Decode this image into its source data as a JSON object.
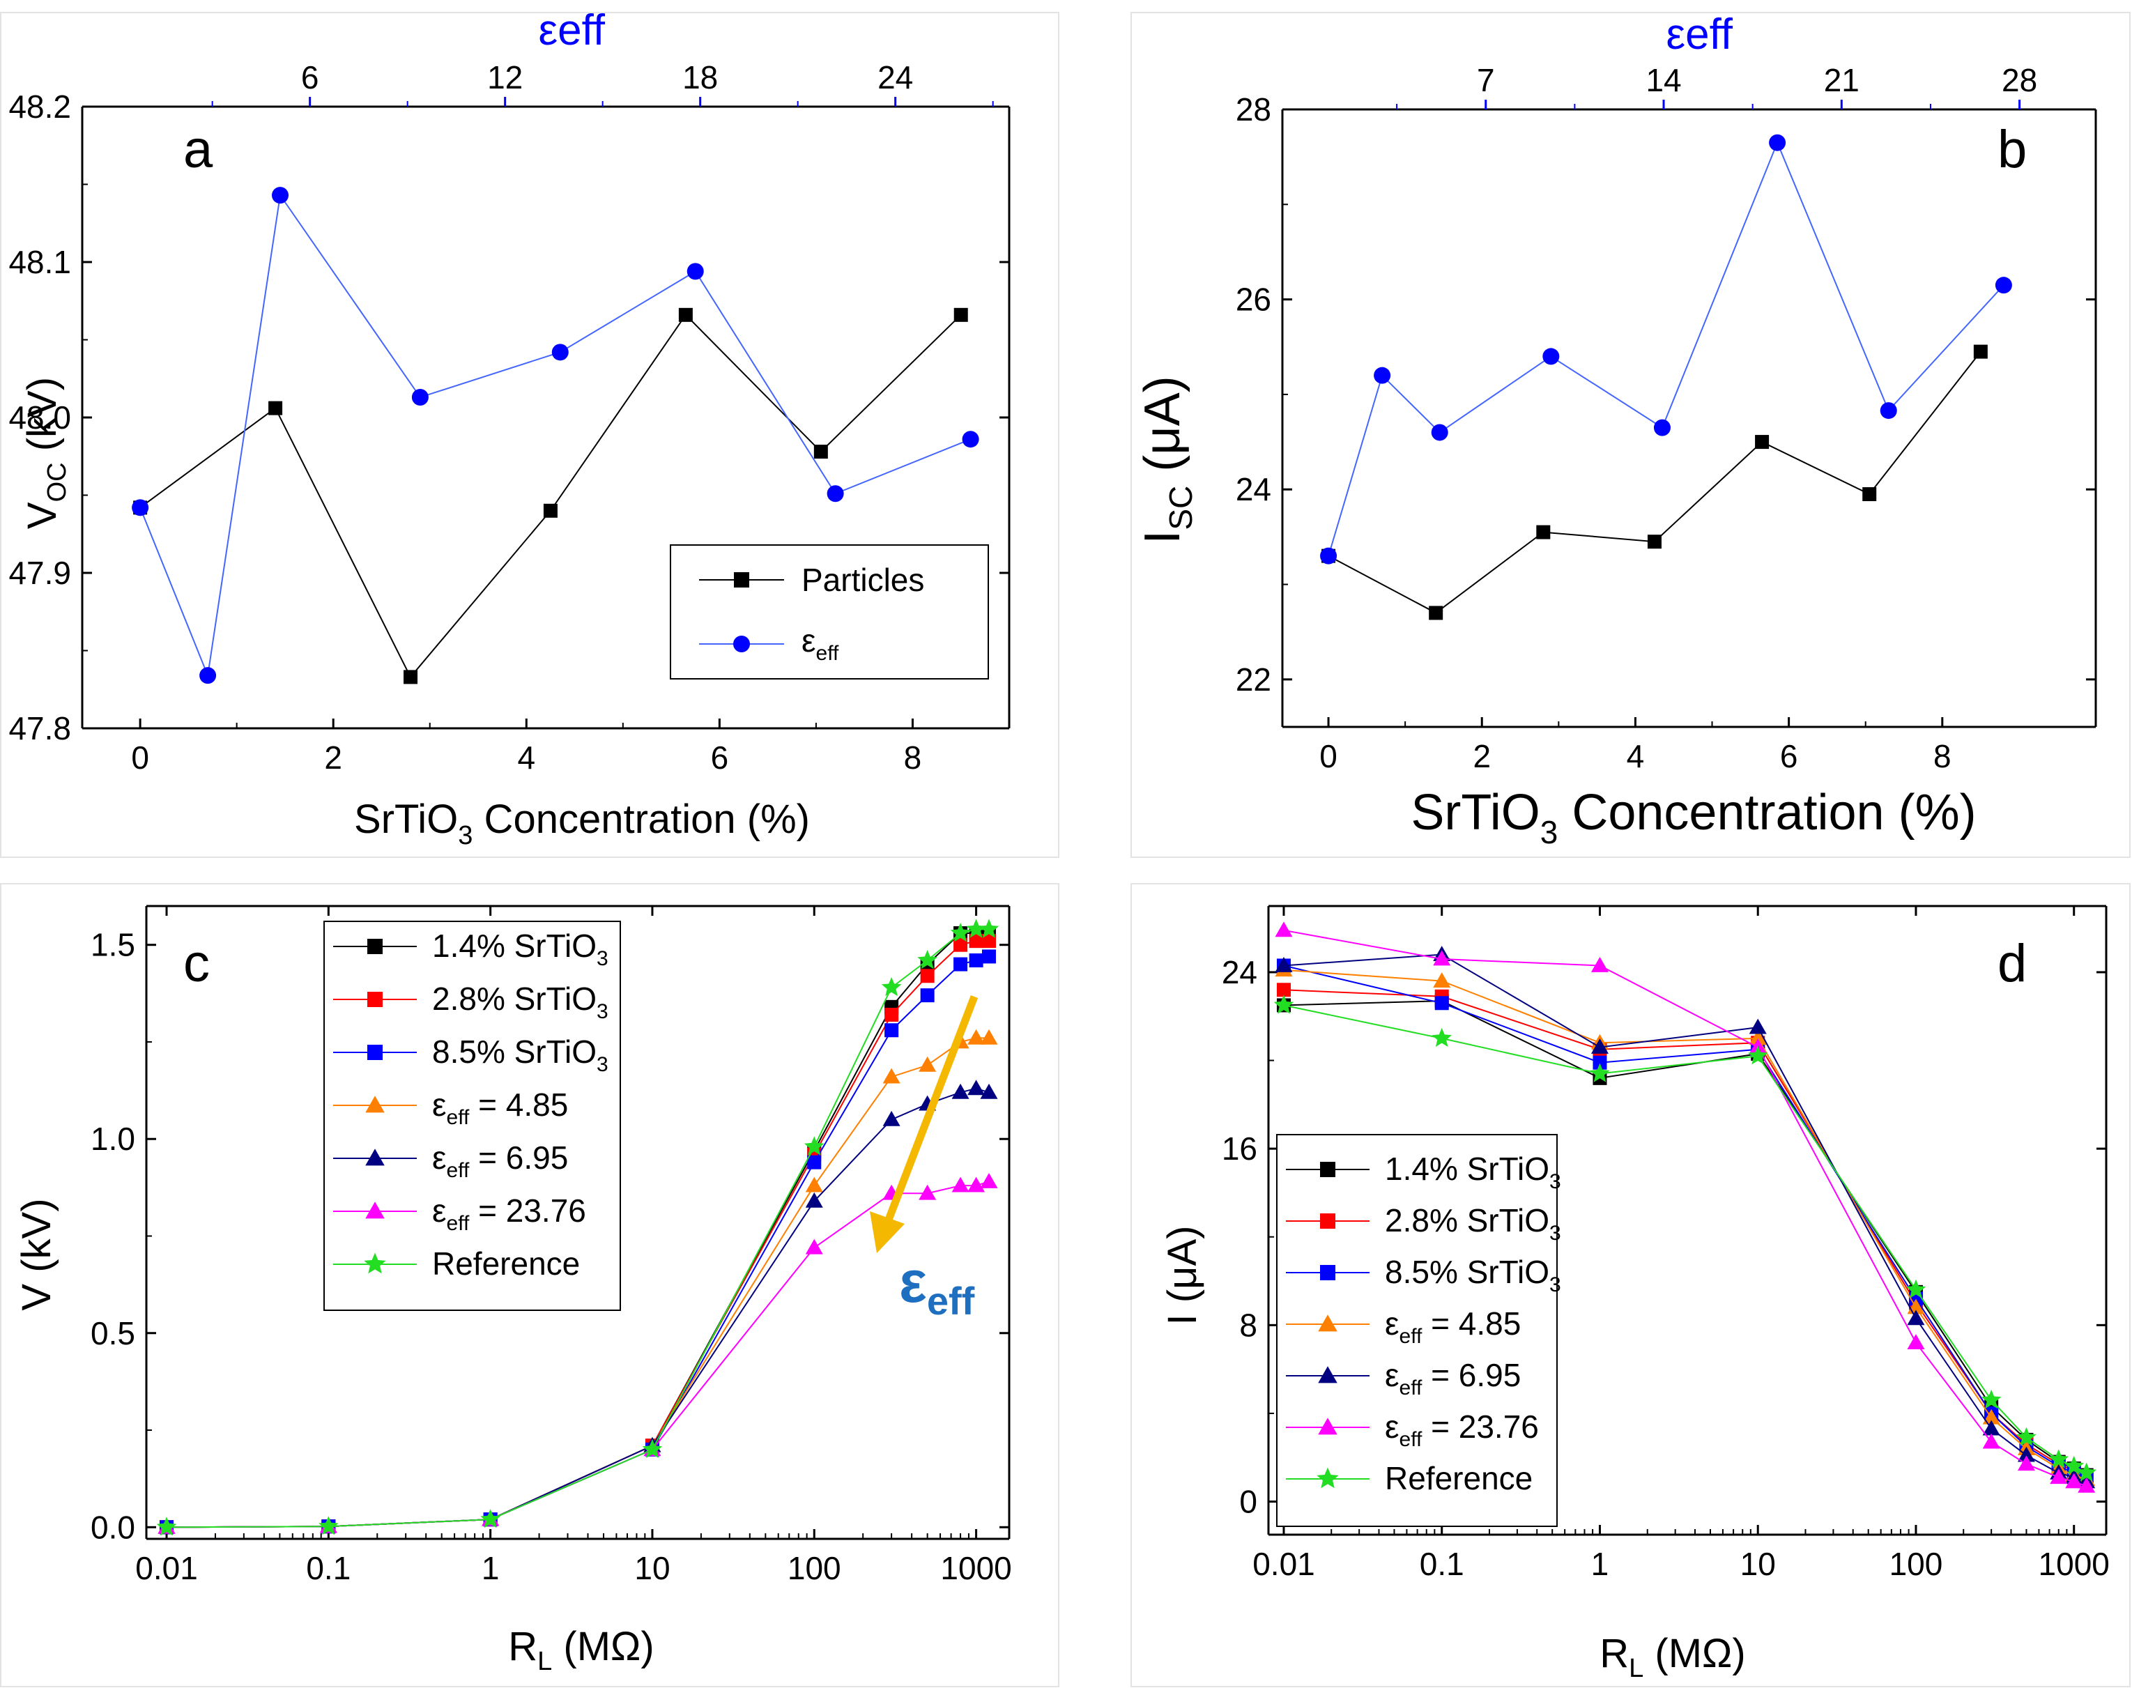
{
  "figure": {
    "palette": {
      "black": "#000000",
      "blue": "#0000ff",
      "blue_trace": "#4466ff",
      "red": "#ff0000",
      "orange": "#ff8000",
      "navy": "#000080",
      "magenta": "#ff00ff",
      "green": "#22dd22",
      "arrow": "#f5b800",
      "annotation": "#1f6fc0"
    }
  },
  "chart_data": [
    {
      "id": "a",
      "type": "line",
      "panel_label": "a",
      "xlabel": "SrTiO3 Concentration (%)",
      "ylabel": "VOC (kV)",
      "top_axis_label": "εeff",
      "xlim": [
        -0.6,
        9.0
      ],
      "ylim": [
        47.8,
        48.2
      ],
      "x_ticks": [
        0,
        2,
        4,
        6,
        8
      ],
      "y_ticks": [
        47.8,
        47.9,
        48.0,
        48.1,
        48.2
      ],
      "y_tick_labels": [
        "47.8",
        "47.9",
        "48.0",
        "48.1",
        "48.2"
      ],
      "top_xlim": [
        -1.0,
        27.5
      ],
      "top_ticks": [
        6,
        12,
        18,
        24
      ],
      "top_minor_ticks": [
        3,
        9,
        15,
        21,
        27
      ],
      "legend": {
        "position": "bottom-right",
        "entries": [
          "Particles",
          "εeff"
        ]
      },
      "series": [
        {
          "name": "Particles",
          "color": "#000000",
          "marker": "square",
          "x": [
            0,
            1.4,
            2.8,
            4.25,
            5.65,
            7.05,
            8.5
          ],
          "y": [
            47.942,
            48.006,
            47.833,
            47.94,
            48.066,
            47.978,
            48.066
          ]
        },
        {
          "name": "εeff",
          "color": "#0000ff",
          "marker": "circle",
          "x": [
            0,
            0.7,
            1.45,
            2.9,
            4.35,
            5.75,
            7.2,
            8.6
          ],
          "y": [
            47.942,
            47.834,
            48.143,
            48.013,
            48.042,
            48.094,
            47.951,
            47.986
          ]
        }
      ]
    },
    {
      "id": "b",
      "type": "line",
      "panel_label": "b",
      "xlabel": "SrTiO3 Concentration (%)",
      "ylabel": "ISC (μA)",
      "top_axis_label": "εeff",
      "xlim": [
        -0.6,
        10.0
      ],
      "ylim": [
        21.5,
        28.0
      ],
      "x_ticks": [
        0,
        2,
        4,
        6,
        8
      ],
      "y_ticks": [
        22,
        24,
        26,
        28
      ],
      "y_tick_labels": [
        "22",
        "24",
        "26",
        "28"
      ],
      "top_xlim": [
        -1.0,
        31.0
      ],
      "top_ticks": [
        7,
        14,
        21,
        28
      ],
      "top_minor_ticks": [
        3.5,
        10.5,
        17.5,
        24.5
      ],
      "series": [
        {
          "name": "Particles",
          "color": "#000000",
          "marker": "square",
          "x": [
            0,
            1.4,
            2.8,
            4.25,
            5.65,
            7.05,
            8.5
          ],
          "y": [
            23.3,
            22.7,
            23.55,
            23.45,
            24.5,
            23.95,
            25.45
          ]
        },
        {
          "name": "εeff",
          "color": "#0000ff",
          "marker": "circle",
          "x": [
            0,
            0.7,
            1.45,
            2.9,
            4.35,
            5.85,
            7.3,
            8.8
          ],
          "y": [
            23.3,
            25.2,
            24.6,
            25.4,
            24.65,
            27.65,
            24.83,
            26.15
          ]
        }
      ]
    },
    {
      "id": "c",
      "type": "line",
      "panel_label": "c",
      "xlabel": "RL (MΩ)",
      "ylabel": "V (kV)",
      "x_scale": "log",
      "xlim": [
        0.0075,
        1600
      ],
      "ylim": [
        -0.03,
        1.6
      ],
      "x_ticks": [
        0.01,
        0.1,
        1,
        10,
        100,
        1000
      ],
      "x_tick_labels": [
        "0.01",
        "0.1",
        "1",
        "10",
        "100",
        "1000"
      ],
      "y_ticks": [
        0.0,
        0.5,
        1.0,
        1.5
      ],
      "y_tick_labels": [
        "0.0",
        "0.5",
        "1.0",
        "1.5"
      ],
      "annotation": "εeff",
      "legend": {
        "position": "top-left",
        "entries": [
          "1.4% SrTiO3",
          "2.8% SrTiO3",
          "8.5% SrTiO3",
          "εeff = 4.85",
          "εeff = 6.95",
          "εeff = 23.76",
          "Reference"
        ]
      },
      "x": [
        0.01,
        0.1,
        1,
        10,
        100,
        300,
        500,
        800,
        1000,
        1200
      ],
      "series": [
        {
          "name": "1.4% SrTiO3",
          "color": "#000000",
          "marker": "square",
          "values": [
            0,
            0.002,
            0.02,
            0.21,
            0.97,
            1.34,
            1.45,
            1.53,
            1.53,
            1.53
          ]
        },
        {
          "name": "2.8% SrTiO3",
          "color": "#ff0000",
          "marker": "square",
          "values": [
            0,
            0.002,
            0.02,
            0.21,
            0.96,
            1.32,
            1.42,
            1.5,
            1.51,
            1.51
          ]
        },
        {
          "name": "8.5% SrTiO3",
          "color": "#0000ff",
          "marker": "square",
          "values": [
            0,
            0.002,
            0.02,
            0.2,
            0.94,
            1.28,
            1.37,
            1.45,
            1.46,
            1.47
          ]
        },
        {
          "name": "εeff = 4.85",
          "color": "#ff8000",
          "marker": "triangle",
          "values": [
            0,
            0.002,
            0.02,
            0.21,
            0.88,
            1.16,
            1.19,
            1.25,
            1.26,
            1.26
          ]
        },
        {
          "name": "εeff = 6.95",
          "color": "#000080",
          "marker": "triangle",
          "values": [
            0,
            0.002,
            0.02,
            0.21,
            0.84,
            1.05,
            1.09,
            1.12,
            1.13,
            1.12
          ]
        },
        {
          "name": "εeff = 23.76",
          "color": "#ff00ff",
          "marker": "triangle",
          "values": [
            0,
            0.002,
            0.02,
            0.2,
            0.72,
            0.86,
            0.86,
            0.88,
            0.88,
            0.89
          ]
        },
        {
          "name": "Reference",
          "color": "#22dd22",
          "marker": "star",
          "values": [
            0,
            0.002,
            0.02,
            0.2,
            0.98,
            1.39,
            1.46,
            1.53,
            1.54,
            1.54
          ]
        }
      ]
    },
    {
      "id": "d",
      "type": "line",
      "panel_label": "d",
      "xlabel": "RL (MΩ)",
      "ylabel": "I (μA)",
      "x_scale": "log",
      "xlim": [
        0.008,
        1600
      ],
      "ylim": [
        -1.5,
        27
      ],
      "x_ticks": [
        0.01,
        0.1,
        1,
        10,
        100,
        1000
      ],
      "x_tick_labels": [
        "0.01",
        "0.1",
        "1",
        "10",
        "100",
        "1000"
      ],
      "y_ticks": [
        0,
        8,
        16,
        24
      ],
      "y_tick_labels": [
        "0",
        "8",
        "16",
        "24"
      ],
      "legend": {
        "position": "bottom-left",
        "entries": [
          "1.4% SrTiO3",
          "2.8% SrTiO3",
          "8.5% SrTiO3",
          "εeff = 4.85",
          "εeff = 6.95",
          "εeff = 23.76",
          "Reference"
        ]
      },
      "x": [
        0.01,
        0.1,
        1,
        10,
        100,
        300,
        500,
        800,
        1000,
        1200
      ],
      "series": [
        {
          "name": "1.4% SrTiO3",
          "color": "#000000",
          "marker": "square",
          "values": [
            22.5,
            22.7,
            19.2,
            20.3,
            9.5,
            4.3,
            2.8,
            1.8,
            1.5,
            1.2
          ]
        },
        {
          "name": "2.8% SrTiO3",
          "color": "#ff0000",
          "marker": "square",
          "values": [
            23.2,
            22.9,
            20.5,
            20.8,
            9.0,
            4.0,
            2.6,
            1.7,
            1.4,
            1.1
          ]
        },
        {
          "name": "8.5% SrTiO3",
          "color": "#0000ff",
          "marker": "square",
          "values": [
            24.3,
            22.6,
            19.9,
            20.5,
            9.2,
            4.0,
            2.5,
            1.6,
            1.3,
            1.0
          ]
        },
        {
          "name": "εeff = 4.85",
          "color": "#ff8000",
          "marker": "triangle",
          "values": [
            24.1,
            23.6,
            20.8,
            21.0,
            8.8,
            3.8,
            2.4,
            1.5,
            1.2,
            1.0
          ]
        },
        {
          "name": "εeff = 6.95",
          "color": "#000080",
          "marker": "triangle",
          "values": [
            24.3,
            24.8,
            20.6,
            21.5,
            8.3,
            3.3,
            2.1,
            1.3,
            1.1,
            0.9
          ]
        },
        {
          "name": "εeff = 23.76",
          "color": "#ff00ff",
          "marker": "triangle",
          "values": [
            25.9,
            24.6,
            24.3,
            20.6,
            7.2,
            2.7,
            1.7,
            1.1,
            0.9,
            0.7
          ]
        },
        {
          "name": "Reference",
          "color": "#22dd22",
          "marker": "star",
          "values": [
            22.5,
            21.0,
            19.4,
            20.2,
            9.6,
            4.6,
            2.9,
            1.9,
            1.6,
            1.3
          ]
        }
      ]
    }
  ]
}
